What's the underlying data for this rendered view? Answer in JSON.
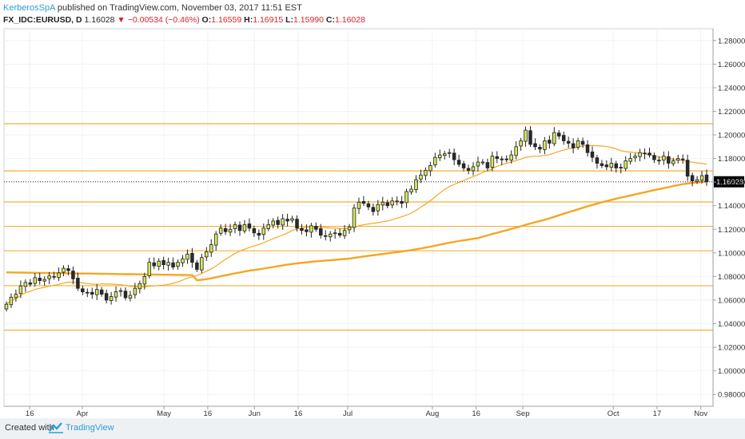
{
  "header": {
    "author": "KerberosSpA",
    "published": "published on TradingView.com, November 03, 2017 11:51 EST"
  },
  "ohlc": {
    "symbol": "FX_IDC:EURUSD, D",
    "last": "1.16028",
    "change": "▼ −0.00534 (−0.46%)",
    "o_label": "O:",
    "o": "1.16559",
    "h_label": "H:",
    "h": "1.16915",
    "l_label": "L:",
    "l": "1.15990",
    "c_label": "C:",
    "c": "1.16028"
  },
  "footer": {
    "created": "Created with",
    "brand": "TradingView"
  },
  "colors": {
    "up": "#d7e75a",
    "down": "#2a2a2a",
    "ma_slow": "#f5a623",
    "ma_fast": "#f5a623",
    "hline": "#f2b035",
    "last_tag_bg": "#000000"
  },
  "chart_data": {
    "type": "candlestick",
    "instrument": "FX_IDC:EURUSD",
    "interval": "D",
    "y_range": [
      0.97,
      1.29
    ],
    "y_ticks": [
      "0.98000",
      "1.00000",
      "1.02000",
      "1.04000",
      "1.06000",
      "1.08000",
      "1.10000",
      "1.12000",
      "1.14000",
      "1.16000",
      "1.18000",
      "1.20000",
      "1.22000",
      "1.24000",
      "1.26000",
      "1.28000"
    ],
    "last_price_label": "1.16028",
    "x_labels": [
      {
        "label": "16",
        "date": "2017-03-16"
      },
      {
        "label": "Apr",
        "date": "2017-04-03"
      },
      {
        "label": "May",
        "date": "2017-05-01"
      },
      {
        "label": "16",
        "date": "2017-05-16"
      },
      {
        "label": "Jun",
        "date": "2017-06-01"
      },
      {
        "label": "16",
        "date": "2017-06-16"
      },
      {
        "label": "Jul",
        "date": "2017-07-03"
      },
      {
        "label": "Aug",
        "date": "2017-08-01"
      },
      {
        "label": "16",
        "date": "2017-08-16"
      },
      {
        "label": "Sep",
        "date": "2017-09-01"
      },
      {
        "label": "Oct",
        "date": "2017-10-02"
      },
      {
        "label": "17",
        "date": "2017-10-17"
      },
      {
        "label": "Nov",
        "date": "2017-11-01"
      }
    ],
    "horizontal_levels": [
      1.2095,
      1.1695,
      1.1432,
      1.1225,
      1.1018,
      1.0722,
      1.0345
    ],
    "candles_close": [
      1.0565,
      1.0625,
      1.065,
      1.072,
      1.075,
      1.0735,
      1.079,
      1.0765,
      1.0775,
      1.0805,
      1.0795,
      1.083,
      1.087,
      1.085,
      1.078,
      1.07,
      1.067,
      1.066,
      1.065,
      1.069,
      1.065,
      1.06,
      1.063,
      1.067,
      1.068,
      1.062,
      1.064,
      1.07,
      1.074,
      1.08,
      1.092,
      1.089,
      1.093,
      1.09,
      1.092,
      1.088,
      1.092,
      1.095,
      1.099,
      1.092,
      1.086,
      1.096,
      1.101,
      1.107,
      1.116,
      1.121,
      1.118,
      1.12,
      1.124,
      1.119,
      1.124,
      1.121,
      1.117,
      1.115,
      1.121,
      1.124,
      1.127,
      1.124,
      1.129,
      1.127,
      1.129,
      1.121,
      1.119,
      1.118,
      1.123,
      1.12,
      1.115,
      1.114,
      1.116,
      1.117,
      1.115,
      1.119,
      1.122,
      1.138,
      1.143,
      1.142,
      1.139,
      1.135,
      1.141,
      1.143,
      1.14,
      1.144,
      1.144,
      1.142,
      1.152,
      1.154,
      1.162,
      1.166,
      1.17,
      1.174,
      1.181,
      1.183,
      1.184,
      1.185,
      1.179,
      1.175,
      1.172,
      1.17,
      1.173,
      1.177,
      1.177,
      1.172,
      1.182,
      1.18,
      1.179,
      1.179,
      1.183,
      1.19,
      1.195,
      1.204,
      1.192,
      1.19,
      1.188,
      1.195,
      1.193,
      1.202,
      1.199,
      1.195,
      1.193,
      1.189,
      1.195,
      1.192,
      1.185,
      1.181,
      1.176,
      1.174,
      1.173,
      1.176,
      1.172,
      1.172,
      1.178,
      1.18,
      1.182,
      1.185,
      1.184,
      1.183,
      1.179,
      1.178,
      1.182,
      1.176,
      1.178,
      1.18,
      1.179,
      1.165,
      1.161,
      1.162,
      1.1655,
      1.1603
    ],
    "ma_fast_period_label": "",
    "ma_slow_period_label": ""
  }
}
